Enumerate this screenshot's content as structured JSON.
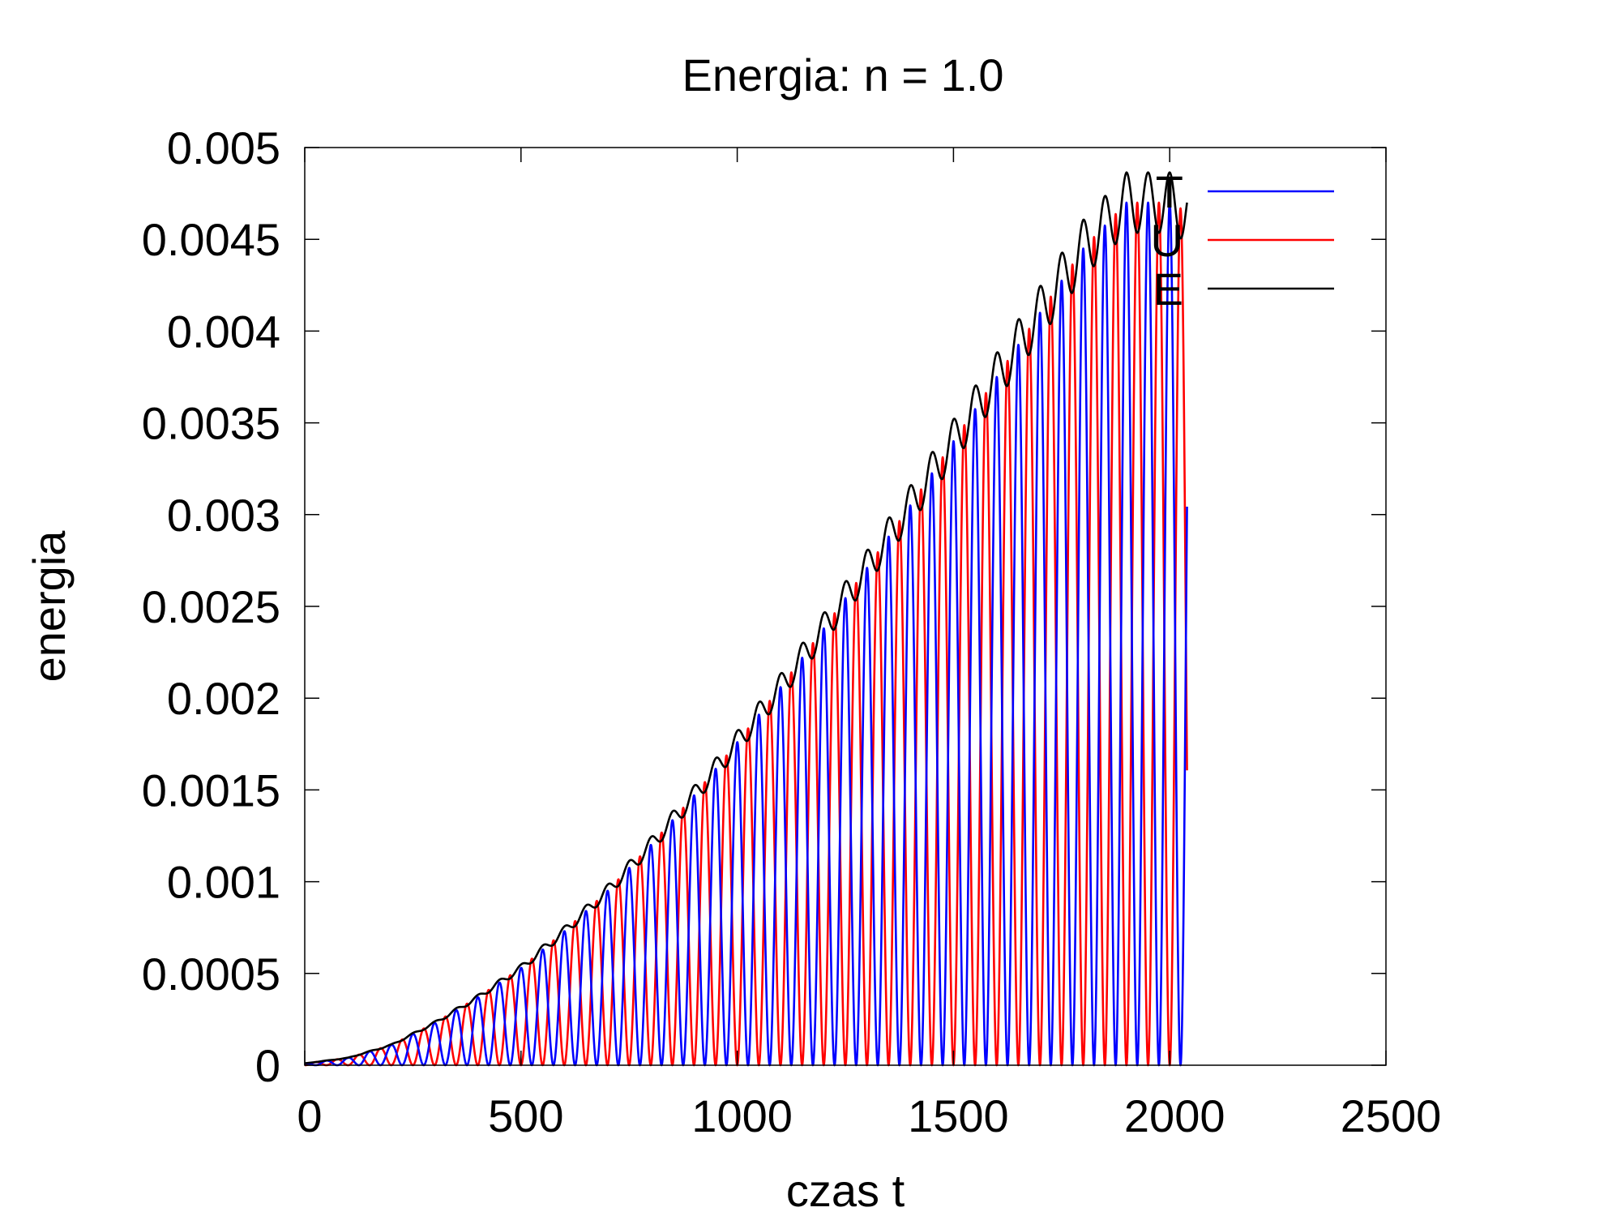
{
  "chart_data": {
    "type": "line",
    "title": "Energia: n = 1.0",
    "xlabel": "czas t",
    "ylabel": "energia",
    "xlim": [
      0,
      2500
    ],
    "ylim": [
      0,
      0.005
    ],
    "x_ticks": [
      "0",
      "500",
      "1000",
      "1500",
      "2000",
      "2500"
    ],
    "y_ticks": [
      "0",
      "0.0005",
      "0.001",
      "0.0015",
      "0.002",
      "0.0025",
      "0.003",
      "0.0035",
      "0.004",
      "0.0045",
      "0.005"
    ],
    "grid": false,
    "legend_position": "top-right",
    "x_end": 2040,
    "period": 50,
    "envelope": {
      "t": [
        0,
        100,
        200,
        300,
        400,
        500,
        600,
        700,
        800,
        900,
        1000,
        1100,
        1200,
        1300,
        1400,
        1500,
        1600,
        1700,
        1800,
        1900,
        2000,
        2040
      ],
      "value": [
        1e-05,
        4e-05,
        0.00011,
        0.00023,
        0.00037,
        0.00053,
        0.00073,
        0.00095,
        0.0012,
        0.00147,
        0.00176,
        0.00206,
        0.00238,
        0.00271,
        0.00305,
        0.0034,
        0.00375,
        0.0041,
        0.00445,
        0.0047,
        0.0047,
        0.00465
      ]
    },
    "series": [
      {
        "name": "T",
        "color": "#0000ff",
        "phase": "cos"
      },
      {
        "name": "U",
        "color": "#ff0000",
        "phase": "sin"
      },
      {
        "name": "E",
        "color": "#000000",
        "phase": "sum"
      }
    ]
  }
}
